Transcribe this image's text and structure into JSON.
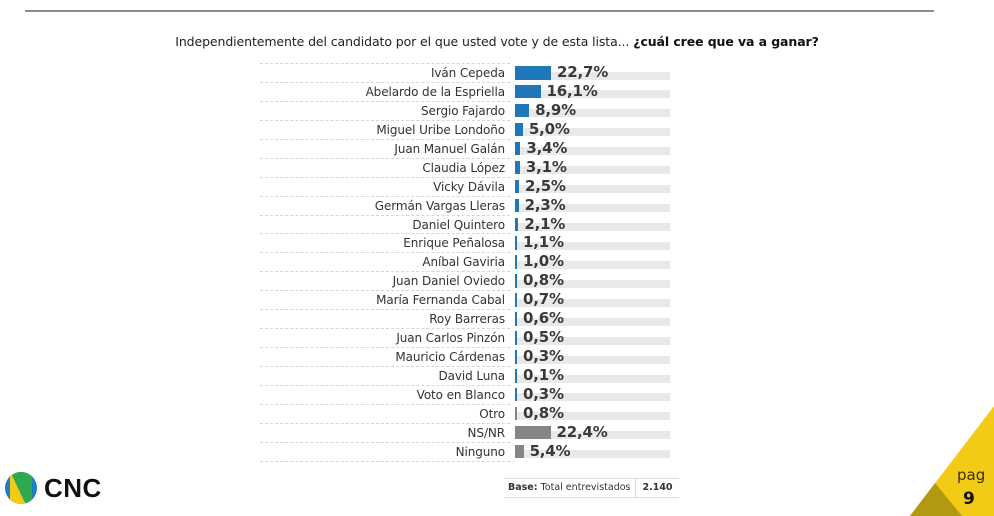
{
  "header": {
    "question_plain": "Independientemente del candidato por el que usted vote y de esta lista...",
    "question_bold": "¿cuál cree que va a ganar?"
  },
  "colors": {
    "candidate_bar": "#1f78b9",
    "other_bar": "#858585",
    "track": "#e9e9e9",
    "corner_yellow": "#f2cb17",
    "corner_dark": "#b39812"
  },
  "chart_data": {
    "type": "bar",
    "orientation": "horizontal",
    "title": "Independientemente del candidato por el que usted vote y de esta lista... ¿cuál cree que va a ganar?",
    "xlabel": "",
    "ylabel": "",
    "unit": "%",
    "xlim": [
      0,
      100
    ],
    "grid": false,
    "legend": null,
    "categories": [
      "Iván Cepeda",
      "Abelardo de la Espriella",
      "Sergio Fajardo",
      "Miguel Uribe Londoño",
      "Juan Manuel Galán",
      "Claudia López",
      "Vicky Dávila",
      "Germán Vargas Lleras",
      "Daniel Quintero",
      "Enrique Peñalosa",
      "Aníbal Gaviria",
      "Juan Daniel Oviedo",
      "María Fernanda Cabal",
      "Roy Barreras",
      "Juan Carlos Pinzón",
      "Mauricio Cárdenas",
      "David Luna",
      "Voto en Blanco",
      "Otro",
      "NS/NR",
      "Ninguno"
    ],
    "values": [
      22.7,
      16.1,
      8.9,
      5.0,
      3.4,
      3.1,
      2.5,
      2.3,
      2.1,
      1.1,
      1.0,
      0.8,
      0.7,
      0.6,
      0.5,
      0.3,
      0.1,
      0.3,
      0.8,
      22.4,
      5.4
    ],
    "labels": [
      "22,7%",
      "16,1%",
      "8,9%",
      "5,0%",
      "3,4%",
      "3,1%",
      "2,5%",
      "2,3%",
      "2,1%",
      "1,1%",
      "1,0%",
      "0,8%",
      "0,7%",
      "0,6%",
      "0,5%",
      "0,3%",
      "0,1%",
      "0,3%",
      "0,8%",
      "22,4%",
      "5,4%"
    ],
    "bar_colors": [
      "blue",
      "blue",
      "blue",
      "blue",
      "blue",
      "blue",
      "blue",
      "blue",
      "blue",
      "blue",
      "blue",
      "blue",
      "blue",
      "blue",
      "blue",
      "blue",
      "blue",
      "blue",
      "grey",
      "grey",
      "grey"
    ]
  },
  "rows": [
    {
      "label": "Iván Cepeda",
      "value_text": "22,7%"
    },
    {
      "label": "Abelardo de la Espriella",
      "value_text": "16,1%"
    },
    {
      "label": "Sergio Fajardo",
      "value_text": "8,9%"
    },
    {
      "label": "Miguel Uribe Londoño",
      "value_text": "5,0%"
    },
    {
      "label": "Juan Manuel Galán",
      "value_text": "3,4%"
    },
    {
      "label": "Claudia López",
      "value_text": "3,1%"
    },
    {
      "label": "Vicky Dávila",
      "value_text": "2,5%"
    },
    {
      "label": "Germán Vargas Lleras",
      "value_text": "2,3%"
    },
    {
      "label": "Daniel Quintero",
      "value_text": "2,1%"
    },
    {
      "label": "Enrique Peñalosa",
      "value_text": "1,1%"
    },
    {
      "label": "Aníbal Gaviria",
      "value_text": "1,0%"
    },
    {
      "label": "Juan Daniel Oviedo",
      "value_text": "0,8%"
    },
    {
      "label": "María Fernanda Cabal",
      "value_text": "0,7%"
    },
    {
      "label": "Roy Barreras",
      "value_text": "0,6%"
    },
    {
      "label": "Juan Carlos Pinzón",
      "value_text": "0,5%"
    },
    {
      "label": "Mauricio Cárdenas",
      "value_text": "0,3%"
    },
    {
      "label": "David Luna",
      "value_text": "0,1%"
    },
    {
      "label": "Voto en Blanco",
      "value_text": "0,3%"
    },
    {
      "label": "Otro",
      "value_text": "0,8%"
    },
    {
      "label": "NS/NR",
      "value_text": "22,4%"
    },
    {
      "label": "Ninguno",
      "value_text": "5,4%"
    }
  ],
  "footer": {
    "base_bold": "Base:",
    "base_text": "Total entrevistados",
    "base_value": "2.140"
  },
  "logo": {
    "text": "CNC",
    "icon": "cnc-logo-icon"
  },
  "page": {
    "label": "pag",
    "number": "9"
  }
}
